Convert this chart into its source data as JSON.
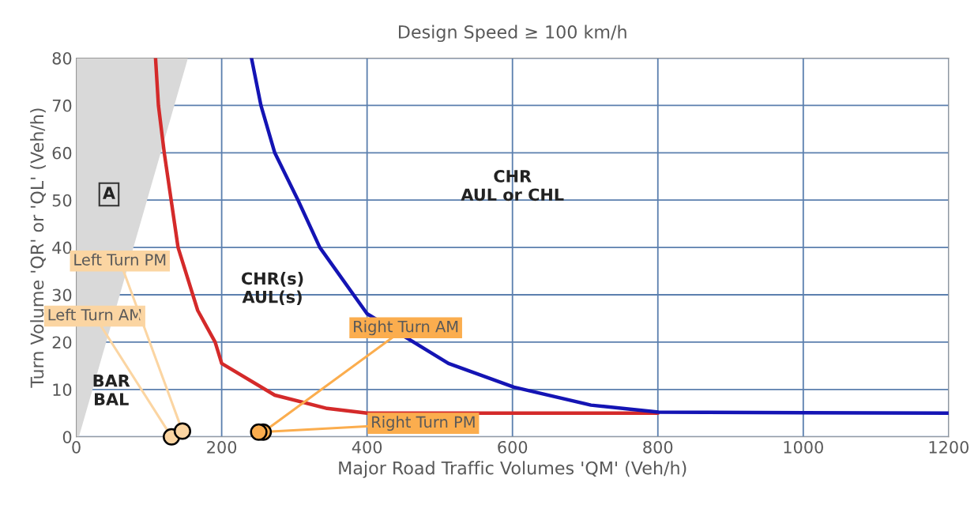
{
  "chart_data": {
    "type": "line",
    "title": "Design Speed ≥ 100 km/h",
    "xlabel": "Major Road Traffic Volumes 'QM' (Veh/h)",
    "ylabel": "Turn Volume 'QR' or 'QL' (Veh/h)",
    "xlim": [
      0,
      1200
    ],
    "ylim": [
      0,
      80
    ],
    "xticks": [
      0,
      200,
      400,
      600,
      800,
      1000,
      1200
    ],
    "yticks": [
      0,
      10,
      20,
      30,
      40,
      50,
      60,
      70,
      80
    ],
    "grid": true,
    "legend": false,
    "series": [
      {
        "color": "#d42a2a",
        "x": [
          109,
          113,
          121,
          140,
          167,
          191,
          200,
          273,
          345,
          400,
          800
        ],
        "values": [
          80,
          70,
          60,
          40,
          26.7,
          20,
          15.5,
          8.8,
          6,
          5,
          5
        ]
      },
      {
        "color": "#1414b4",
        "x": [
          241,
          254,
          273,
          305,
          335,
          400,
          512,
          602,
          708,
          801,
          1200
        ],
        "values": [
          80,
          70,
          60,
          50,
          40,
          26,
          15.5,
          10.5,
          6.7,
          5.2,
          5
        ]
      },
      {
        "type": "scatter",
        "name": "Left Turn AM",
        "color": "#fbd5a2",
        "x": [
          131
        ],
        "values": [
          0
        ]
      },
      {
        "type": "scatter",
        "name": "Left Turn PM",
        "color": "#fbd5a2",
        "x": [
          146
        ],
        "values": [
          1.2
        ]
      },
      {
        "type": "scatter",
        "name": "Right Turn AM",
        "color": "#fbad4e",
        "x": [
          257
        ],
        "values": [
          1
        ]
      },
      {
        "type": "scatter",
        "name": "Right Turn PM",
        "color": "#fbad4e",
        "x": [
          251
        ],
        "values": [
          1
        ]
      }
    ],
    "annotations": [
      "A",
      "CHR(s)\nAUL(s)",
      "BAR\nBAL",
      "CHR\nAUL or CHL"
    ]
  }
}
